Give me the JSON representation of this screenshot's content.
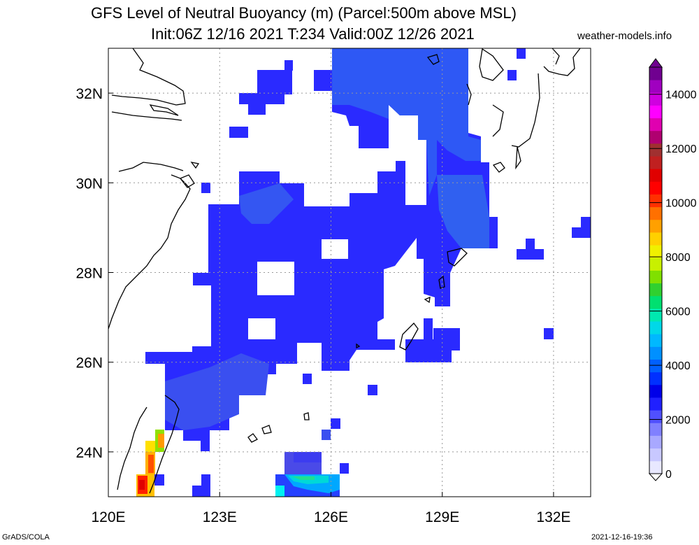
{
  "title": {
    "line1": "GFS Level of Neutral Buoyancy (m) (Parcel:500m above MSL)",
    "line2": "Init:06Z 12/16 2021 T:234 Valid:00Z 12/26 2021"
  },
  "site": "weather-models.info",
  "footer": {
    "left": "GrADS/COLA",
    "right": "2021-12-16-19:36"
  },
  "map": {
    "lon_range": [
      120,
      133
    ],
    "lat_range": [
      23,
      33
    ],
    "lon_ticks": [
      {
        "value": 120,
        "label": "120E"
      },
      {
        "value": 123,
        "label": "123E"
      },
      {
        "value": 126,
        "label": "126E"
      },
      {
        "value": 129,
        "label": "129E"
      },
      {
        "value": 132,
        "label": "132E"
      }
    ],
    "lat_ticks": [
      {
        "value": 24,
        "label": "24N"
      },
      {
        "value": 26,
        "label": "26N"
      },
      {
        "value": 28,
        "label": "28N"
      },
      {
        "value": 30,
        "label": "30N"
      },
      {
        "value": 32,
        "label": "32N"
      }
    ],
    "grid": true
  },
  "colorbar": {
    "labels": [
      {
        "value": 0,
        "label": "0"
      },
      {
        "value": 2000,
        "label": "2000"
      },
      {
        "value": 4000,
        "label": "4000"
      },
      {
        "value": 6000,
        "label": "6000"
      },
      {
        "value": 8000,
        "label": "8000"
      },
      {
        "value": 10000,
        "label": "10000"
      },
      {
        "value": 12000,
        "label": "12000"
      },
      {
        "value": 14000,
        "label": "14000"
      }
    ],
    "colors": [
      "#e8e8ff",
      "#c8c8ff",
      "#a8a8ff",
      "#8080ff",
      "#5050ff",
      "#2020ff",
      "#0000e8",
      "#0030ff",
      "#0060ff",
      "#0090ff",
      "#00b8ff",
      "#00d8e8",
      "#00e8b0",
      "#00e070",
      "#30d030",
      "#80e000",
      "#c8f000",
      "#f0f000",
      "#ffd000",
      "#ffa000",
      "#ff7000",
      "#ff3000",
      "#ff0000",
      "#e00000",
      "#c02020",
      "#a03030",
      "#b00070",
      "#e000b0",
      "#ff00ff",
      "#d000e0",
      "#a000c0",
      "#700090"
    ]
  }
}
